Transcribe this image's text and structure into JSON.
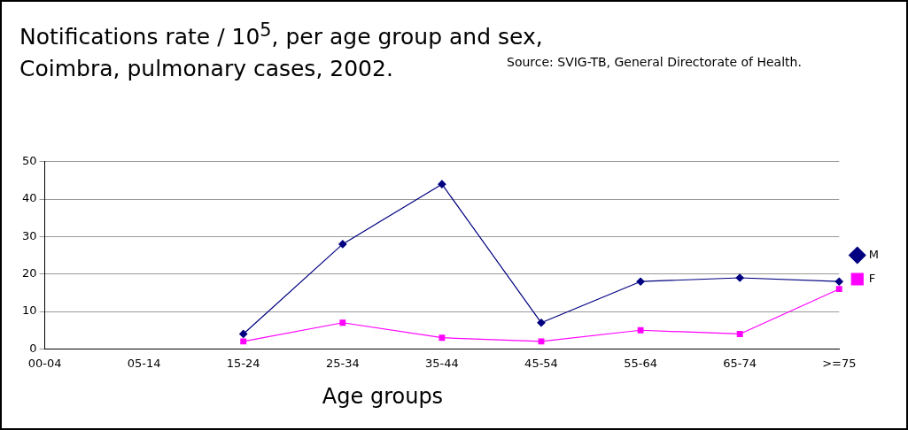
{
  "chart_data": {
    "type": "line",
    "title": "Notifications rate / 10$^{5}$, per age group and sex, Coimbra, pulmonary cases, 2002.",
    "xlabel": "Age groups",
    "annotations": [
      "Source: SVIG-TB, General Directorate of Health."
    ],
    "categories": [
      "00-04",
      "05-14",
      "15-24",
      "25-34",
      "35-44",
      "45-54",
      "55-64",
      "65-74",
      ">=75"
    ],
    "series": [
      {
        "name": "M",
        "color": "#000080",
        "marker": "diamond",
        "values": [
          null,
          null,
          4,
          28,
          44,
          7,
          18,
          19,
          18
        ]
      },
      {
        "name": "F",
        "color": "#ff00ff",
        "marker": "square",
        "values": [
          null,
          null,
          2,
          7,
          3,
          2,
          5,
          4,
          16
        ]
      }
    ],
    "ylim": [
      0,
      50
    ],
    "yticks": [
      0,
      10,
      20,
      30,
      40,
      50
    ],
    "grid": "y",
    "legend": "right",
    "line_style": "solid"
  }
}
